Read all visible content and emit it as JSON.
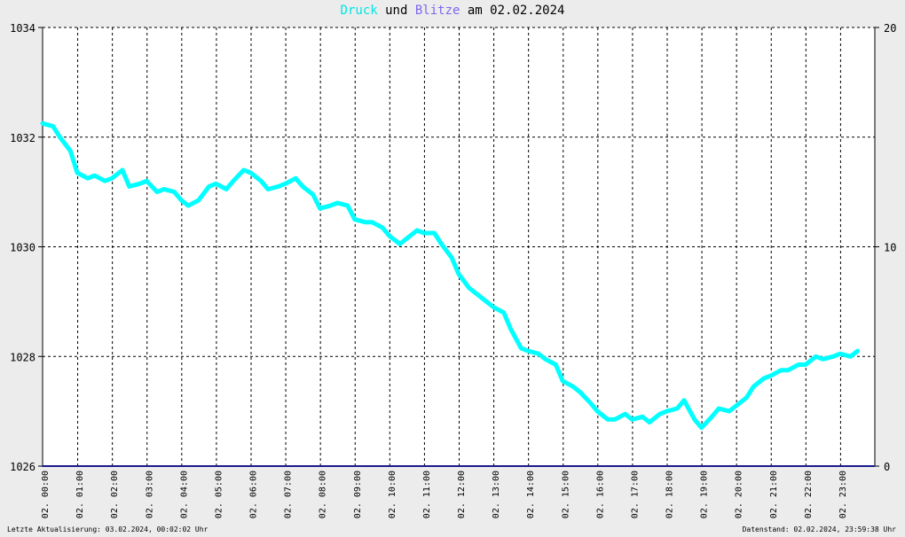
{
  "title": {
    "part1": "Druck",
    "part2": " und ",
    "part3": "Blitze",
    "part4": " am 02.02.2024",
    "color_druck": "#00e5e5",
    "color_blitze": "#7b68ee"
  },
  "footer": {
    "left": "Letzte Aktualisierung: 03.02.2024, 00:02:02 Uhr",
    "right": "Datenstand: 02.02.2024, 23:59:38 Uhr"
  },
  "chart_data": {
    "type": "line",
    "x_categories": [
      "02. 00:00",
      "02. 01:00",
      "02. 02:00",
      "02. 03:00",
      "02. 04:00",
      "02. 05:00",
      "02. 06:00",
      "02. 07:00",
      "02. 08:00",
      "02. 09:00",
      "02. 10:00",
      "02. 11:00",
      "02. 12:00",
      "02. 13:00",
      "02. 14:00",
      "02. 15:00",
      "02. 16:00",
      "02. 17:00",
      "02. 18:00",
      "02. 19:00",
      "02. 20:00",
      "02. 21:00",
      "02. 22:00",
      "02. 23:00"
    ],
    "y_left": {
      "min": 1026,
      "max": 1034,
      "ticks": [
        1026,
        1028,
        1030,
        1032,
        1034
      ]
    },
    "y_right": {
      "min": 0,
      "max": 20,
      "ticks": [
        0,
        10,
        20
      ]
    },
    "grid": true,
    "series": [
      {
        "name": "Druck",
        "color": "#00ffff",
        "axis": "left",
        "points": [
          [
            0.0,
            1032.25
          ],
          [
            0.3,
            1032.2
          ],
          [
            0.5,
            1032.0
          ],
          [
            0.8,
            1031.75
          ],
          [
            1.0,
            1031.35
          ],
          [
            1.3,
            1031.25
          ],
          [
            1.5,
            1031.3
          ],
          [
            1.8,
            1031.2
          ],
          [
            2.0,
            1031.25
          ],
          [
            2.3,
            1031.4
          ],
          [
            2.5,
            1031.1
          ],
          [
            2.8,
            1031.15
          ],
          [
            3.0,
            1031.2
          ],
          [
            3.3,
            1031.0
          ],
          [
            3.5,
            1031.05
          ],
          [
            3.8,
            1031.0
          ],
          [
            4.0,
            1030.85
          ],
          [
            4.2,
            1030.75
          ],
          [
            4.5,
            1030.85
          ],
          [
            4.8,
            1031.1
          ],
          [
            5.0,
            1031.15
          ],
          [
            5.3,
            1031.05
          ],
          [
            5.5,
            1031.2
          ],
          [
            5.8,
            1031.4
          ],
          [
            6.0,
            1031.35
          ],
          [
            6.3,
            1031.2
          ],
          [
            6.5,
            1031.05
          ],
          [
            6.8,
            1031.1
          ],
          [
            7.0,
            1031.15
          ],
          [
            7.3,
            1031.25
          ],
          [
            7.5,
            1031.1
          ],
          [
            7.8,
            1030.95
          ],
          [
            8.0,
            1030.7
          ],
          [
            8.3,
            1030.75
          ],
          [
            8.5,
            1030.8
          ],
          [
            8.8,
            1030.75
          ],
          [
            9.0,
            1030.5
          ],
          [
            9.3,
            1030.45
          ],
          [
            9.5,
            1030.45
          ],
          [
            9.8,
            1030.35
          ],
          [
            10.0,
            1030.2
          ],
          [
            10.3,
            1030.05
          ],
          [
            10.5,
            1030.15
          ],
          [
            10.8,
            1030.3
          ],
          [
            11.0,
            1030.25
          ],
          [
            11.3,
            1030.25
          ],
          [
            11.5,
            1030.05
          ],
          [
            11.8,
            1029.8
          ],
          [
            12.0,
            1029.5
          ],
          [
            12.3,
            1029.25
          ],
          [
            12.5,
            1029.15
          ],
          [
            12.8,
            1029.0
          ],
          [
            13.0,
            1028.9
          ],
          [
            13.3,
            1028.8
          ],
          [
            13.5,
            1028.5
          ],
          [
            13.8,
            1028.15
          ],
          [
            14.0,
            1028.1
          ],
          [
            14.3,
            1028.05
          ],
          [
            14.5,
            1027.95
          ],
          [
            14.8,
            1027.85
          ],
          [
            15.0,
            1027.55
          ],
          [
            15.3,
            1027.45
          ],
          [
            15.5,
            1027.35
          ],
          [
            15.8,
            1027.15
          ],
          [
            16.0,
            1027.0
          ],
          [
            16.3,
            1026.85
          ],
          [
            16.5,
            1026.85
          ],
          [
            16.8,
            1026.95
          ],
          [
            17.0,
            1026.85
          ],
          [
            17.3,
            1026.9
          ],
          [
            17.5,
            1026.8
          ],
          [
            17.8,
            1026.95
          ],
          [
            18.0,
            1027.0
          ],
          [
            18.3,
            1027.05
          ],
          [
            18.5,
            1027.2
          ],
          [
            18.8,
            1026.85
          ],
          [
            19.0,
            1026.7
          ],
          [
            19.3,
            1026.9
          ],
          [
            19.5,
            1027.05
          ],
          [
            19.8,
            1027.0
          ],
          [
            20.0,
            1027.1
          ],
          [
            20.3,
            1027.25
          ],
          [
            20.5,
            1027.45
          ],
          [
            20.8,
            1027.6
          ],
          [
            21.0,
            1027.65
          ],
          [
            21.3,
            1027.75
          ],
          [
            21.5,
            1027.75
          ],
          [
            21.8,
            1027.85
          ],
          [
            22.0,
            1027.85
          ],
          [
            22.3,
            1028.0
          ],
          [
            22.5,
            1027.95
          ],
          [
            22.8,
            1028.0
          ],
          [
            23.0,
            1028.05
          ],
          [
            23.3,
            1028.0
          ],
          [
            23.5,
            1028.1
          ]
        ]
      },
      {
        "name": "Blitze",
        "color": "#1a1a8c",
        "axis": "right",
        "points": [
          [
            0,
            0
          ],
          [
            23.99,
            0
          ]
        ]
      }
    ]
  }
}
